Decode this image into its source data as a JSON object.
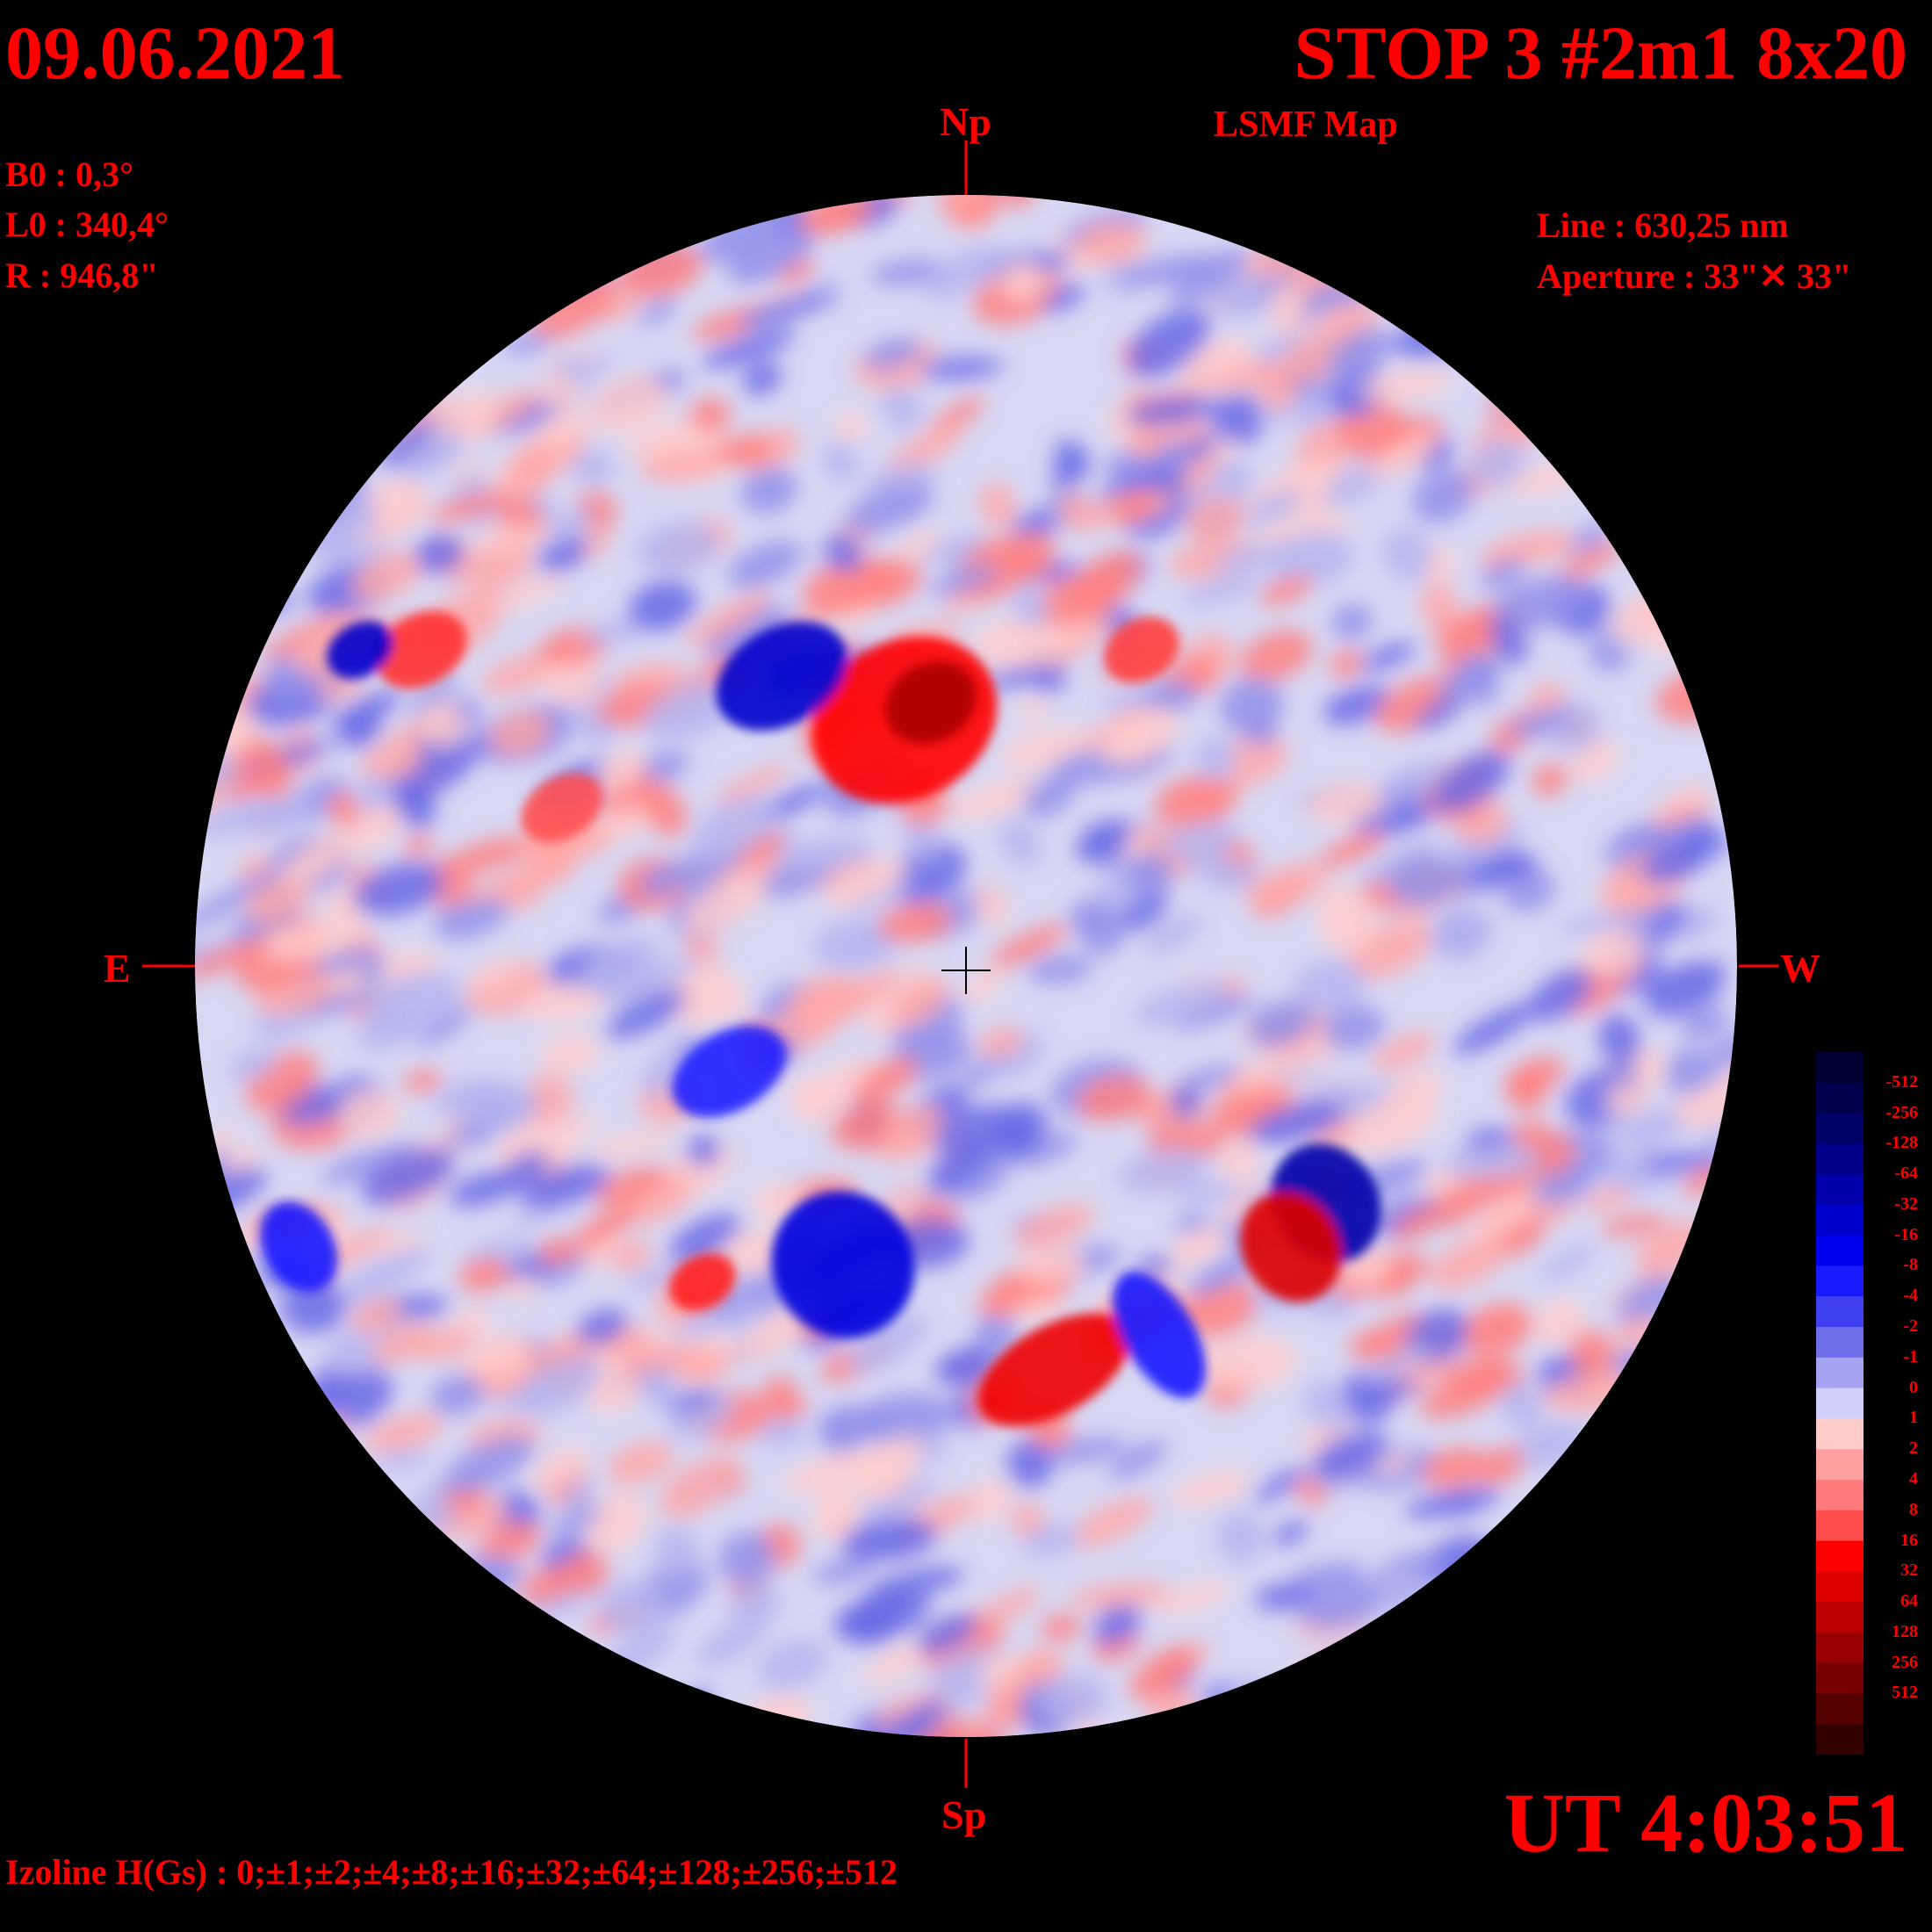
{
  "header": {
    "date": "09.06.2021",
    "title": "STOP 3 #2m1 8x20",
    "subtitle": "LSMF  Map"
  },
  "parameters": {
    "b0": "B0 : 0,3°",
    "l0": "L0 : 340,4°",
    "r": "R  : 946,8\""
  },
  "instrument": {
    "line": "Line :  630,25 nm",
    "aperture": "Aperture : 33\"✕ 33\""
  },
  "orientation": {
    "north": "Np",
    "south": "Sp",
    "east": "E",
    "west": "W"
  },
  "footer": {
    "time": "UT 4:03:51",
    "izoline": "Izoline H(Gs) : 0;±1;±2;±4;±8;±16;±32;±64;±128;±256;±512"
  },
  "colorbar": {
    "labels": [
      "-512",
      "-256",
      "-128",
      "-64",
      "-32",
      "-16",
      "-8",
      "-4",
      "-2",
      "-1",
      "0",
      "1",
      "2",
      "4",
      "8",
      "16",
      "32",
      "64",
      "128",
      "256",
      "512"
    ],
    "colors": [
      "#000033",
      "#00004d",
      "#000066",
      "#000088",
      "#0000aa",
      "#0000cc",
      "#0000ee",
      "#1a1aff",
      "#4040f0",
      "#6f6fec",
      "#a3a3f2",
      "#cfcffa",
      "#ffcccc",
      "#ffa0a0",
      "#ff7a7a",
      "#ff4d4d",
      "#ff0000",
      "#dd0000",
      "#bb0000",
      "#990000",
      "#770000",
      "#550000",
      "#330000"
    ]
  },
  "colors": {
    "text": "#ff0000",
    "background": "#000000",
    "disk_base": "#d8d8f4"
  }
}
